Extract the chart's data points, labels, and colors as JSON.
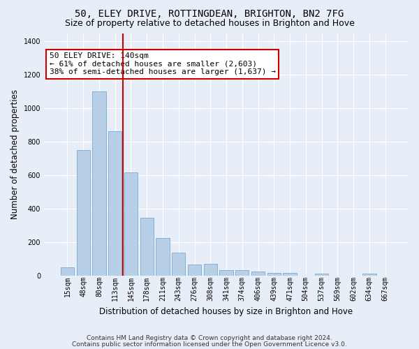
{
  "title": "50, ELEY DRIVE, ROTTINGDEAN, BRIGHTON, BN2 7FG",
  "subtitle": "Size of property relative to detached houses in Brighton and Hove",
  "xlabel": "Distribution of detached houses by size in Brighton and Hove",
  "ylabel": "Number of detached properties",
  "bar_labels": [
    "15sqm",
    "48sqm",
    "80sqm",
    "113sqm",
    "145sqm",
    "178sqm",
    "211sqm",
    "243sqm",
    "276sqm",
    "308sqm",
    "341sqm",
    "374sqm",
    "406sqm",
    "439sqm",
    "471sqm",
    "504sqm",
    "537sqm",
    "569sqm",
    "602sqm",
    "634sqm",
    "667sqm"
  ],
  "bar_values": [
    50,
    750,
    1100,
    865,
    615,
    345,
    225,
    135,
    65,
    70,
    30,
    30,
    25,
    15,
    15,
    0,
    10,
    0,
    0,
    10,
    0
  ],
  "bar_color": "#b8cfe8",
  "bar_edgecolor": "#7aaad0",
  "highlight_index": 3,
  "vline_color": "#cc0000",
  "annotation_text": "50 ELEY DRIVE: 140sqm\n← 61% of detached houses are smaller (2,603)\n38% of semi-detached houses are larger (1,637) →",
  "annotation_box_edgecolor": "#cc0000",
  "annotation_box_facecolor": "#ffffff",
  "ylim": [
    0,
    1450
  ],
  "background_color": "#e8eef8",
  "axes_background": "#e8eef8",
  "grid_color": "#ffffff",
  "footnote1": "Contains HM Land Registry data © Crown copyright and database right 2024.",
  "footnote2": "Contains public sector information licensed under the Open Government Licence v3.0.",
  "title_fontsize": 10,
  "subtitle_fontsize": 9,
  "xlabel_fontsize": 8.5,
  "ylabel_fontsize": 8.5,
  "tick_fontsize": 7,
  "annotation_fontsize": 8,
  "footnote_fontsize": 6.5
}
